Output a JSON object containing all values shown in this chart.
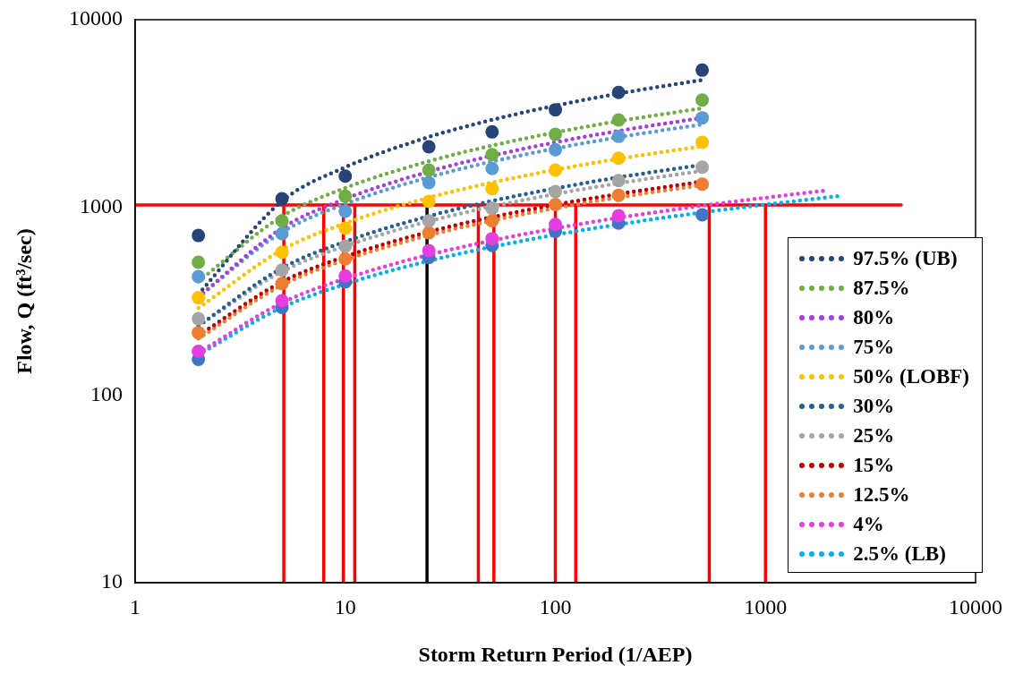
{
  "chart_data": {
    "type": "line",
    "xlabel": "Storm Return Period (1/AEP)",
    "ylabel": "Flow, Q (ft³/sec)",
    "log": "xy",
    "xlim": [
      1,
      10000
    ],
    "xticks": [
      1,
      10,
      100,
      1000,
      10000
    ],
    "ylim": [
      10,
      10000
    ],
    "yticks": [
      10,
      100,
      1000,
      10000
    ],
    "grid": false,
    "legend": "bottom right",
    "line_style": "dotted",
    "marker": "none",
    "x": [
      2,
      5,
      10,
      25,
      50,
      100,
      200,
      500
    ],
    "series": [
      {
        "name": "97.5% (UB)",
        "color": "#264478",
        "values": [
          345,
          1080,
          1636,
          2371,
          2927,
          3483,
          4039,
          4775
        ]
      },
      {
        "name": "87.5%",
        "color": "#70ad47",
        "values": [
          403,
          896,
          1269,
          1762,
          2135,
          2508,
          2881,
          3373
        ]
      },
      {
        "name": "80%",
        "color": "#a33ee0",
        "values": [
          332,
          774,
          1109,
          1551,
          1886,
          2221,
          2556,
          2998
        ]
      },
      {
        "name": "75%",
        "color": "#5b9bd5",
        "values": [
          334,
          738,
          1044,
          1448,
          1754,
          2059,
          2365,
          2769
        ]
      },
      {
        "name": "50% (LOBF)",
        "color": "#ffc000",
        "values": [
          291,
          594,
          823,
          1127,
          1356,
          1586,
          1815,
          2118
        ]
      },
      {
        "name": "30%",
        "color": "#255e91",
        "values": [
          234,
          475,
          657,
          898,
          1081,
          1263,
          1445,
          1686
        ]
      },
      {
        "name": "25%",
        "color": "#a5a5a5",
        "values": [
          234,
          455,
          622,
          843,
          1010,
          1177,
          1344,
          1565
        ]
      },
      {
        "name": "15%",
        "color": "#c00000",
        "values": [
          208,
          401,
          547,
          741,
          887,
          1033,
          1179,
          1373
        ]
      },
      {
        "name": "12.5%",
        "color": "#ed7d31",
        "values": [
          200,
          385,
          525,
          710,
          850,
          990,
          1130,
          1315
        ]
      },
      {
        "name": "4%",
        "color": "#e53ee0",
        "x": [
          2,
          5,
          10,
          25,
          50,
          100,
          200,
          500,
          1950
        ],
        "values": [
          168,
          310,
          417,
          559,
          666,
          773,
          880,
          1021,
          1232
        ]
      },
      {
        "name": "2.5% (LB)",
        "color": "#00b0f0",
        "x": [
          2,
          5,
          10,
          25,
          50,
          100,
          200,
          500,
          2223
        ],
        "values": [
          164,
          293,
          390,
          519,
          616,
          714,
          811,
          940,
          1149
        ]
      },
      {
        "type": "scatter",
        "marker": "circle",
        "color": "#264478",
        "values": [
          708,
          1112,
          1468,
          2102,
          2525,
          3311,
          4094,
          5385
        ]
      },
      {
        "type": "scatter",
        "marker": "circle",
        "color": "#70ad47",
        "values": [
          510,
          848,
          1146,
          1580,
          1911,
          2450,
          2923,
          3734
        ]
      },
      {
        "type": "scatter",
        "marker": "circle",
        "color": "#5b9bd5",
        "values": [
          428,
          725,
          953,
          1355,
          1610,
          2028,
          2390,
          2999
        ]
      },
      {
        "type": "scatter",
        "marker": "circle",
        "color": "#ffc000",
        "values": [
          330,
          577,
          774,
          1076,
          1259,
          1580,
          1828,
          2222
        ]
      },
      {
        "type": "scatter",
        "marker": "circle",
        "color": "#a5a5a5",
        "values": [
          255,
          463,
          621,
          848,
          989,
          1214,
          1390,
          1638
        ]
      },
      {
        "type": "scatter",
        "marker": "circle",
        "color": "#ed7d31",
        "values": [
          215,
          393,
          531,
          733,
          848,
          1036,
          1160,
          1330
        ]
      },
      {
        "type": "scatter",
        "marker": "circle",
        "color": "#e53ee0",
        "values": [
          171,
          318,
          431,
          588,
          681,
          811,
          902,
          null
        ]
      },
      {
        "type": "scatter",
        "marker": "circle",
        "color": "#4472c4",
        "values": [
          155,
          293,
          401,
          541,
          626,
          746,
          824,
          913
        ]
      },
      {
        "line_style": "solid",
        "color": "#ff0000",
        "x": [
          1,
          4430
        ],
        "values": [
          1030,
          1030
        ]
      },
      {
        "line_style": "solid",
        "color": "#ff0000",
        "x": [
          5.1,
          5.1
        ],
        "values": [
          10,
          1030
        ]
      },
      {
        "line_style": "solid",
        "color": "#ff0000",
        "x": [
          7.9,
          7.9
        ],
        "values": [
          10,
          1030
        ]
      },
      {
        "line_style": "solid",
        "color": "#ff0000",
        "x": [
          9.8,
          9.8
        ],
        "values": [
          10,
          1030
        ]
      },
      {
        "line_style": "solid",
        "color": "#ff0000",
        "x": [
          11.1,
          11.1
        ],
        "values": [
          10,
          1030
        ]
      },
      {
        "line_style": "solid",
        "color": "#000000",
        "x": [
          24.5,
          24.5
        ],
        "values": [
          10,
          1030
        ]
      },
      {
        "line_style": "solid",
        "color": "#ff0000",
        "x": [
          43,
          43
        ],
        "values": [
          10,
          1030
        ]
      },
      {
        "line_style": "solid",
        "color": "#ff0000",
        "x": [
          51,
          51
        ],
        "values": [
          10,
          1030
        ]
      },
      {
        "line_style": "solid",
        "color": "#ff0000",
        "x": [
          100,
          100
        ],
        "values": [
          10,
          1030
        ]
      },
      {
        "line_style": "solid",
        "color": "#ff0000",
        "x": [
          125,
          125
        ],
        "values": [
          10,
          1030
        ]
      },
      {
        "line_style": "solid",
        "color": "#ff0000",
        "x": [
          540,
          540
        ],
        "values": [
          10,
          1030
        ]
      },
      {
        "line_style": "solid",
        "color": "#ff0000",
        "x": [
          1000,
          1000
        ],
        "values": [
          10,
          1030
        ]
      }
    ]
  }
}
